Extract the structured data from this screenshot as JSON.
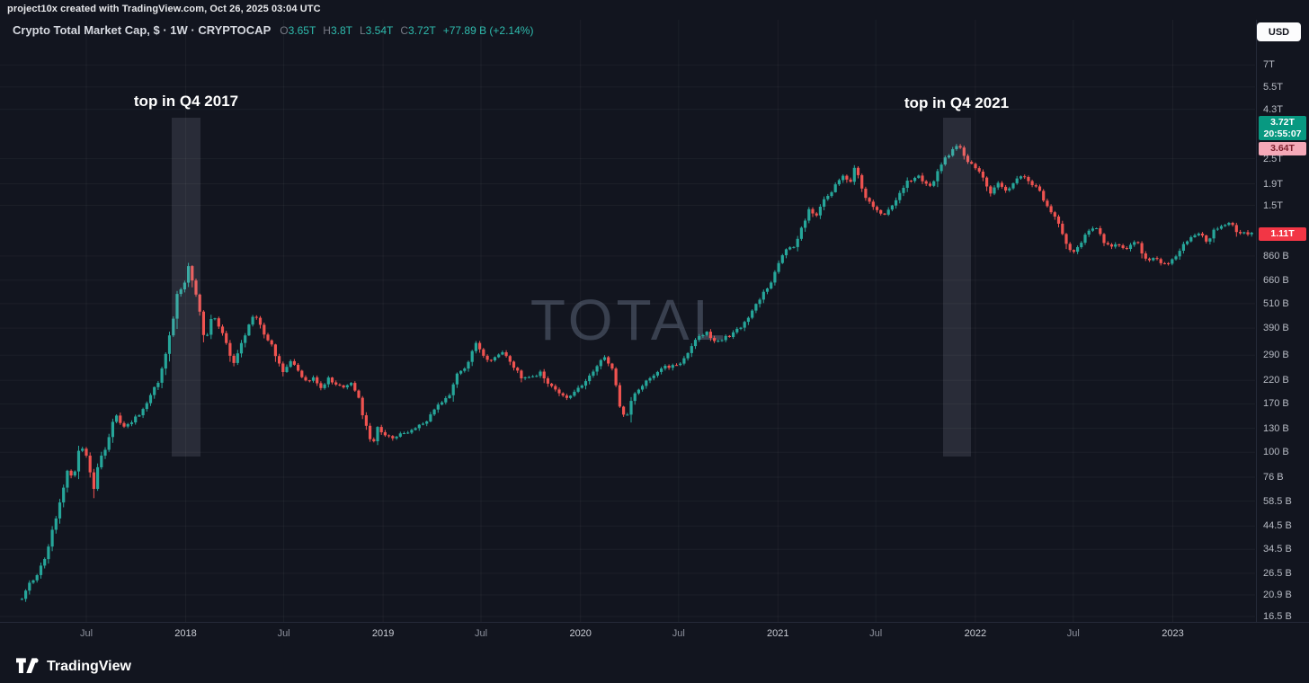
{
  "top_bar": {
    "attribution": "project10x created with TradingView.com, Oct 26, 2025 03:04 UTC"
  },
  "header": {
    "symbol_title": "Crypto Total Market Cap, $ · 1W · CRYPTOCAP",
    "ohlc": {
      "o_label": "O",
      "o": "3.65T",
      "h_label": "H",
      "h": "3.8T",
      "l_label": "L",
      "l": "3.54T",
      "c_label": "C",
      "c": "3.72T",
      "change": "+77.89 B (+2.14%)"
    }
  },
  "toolbar": {
    "currency_label": "USD"
  },
  "watermark": {
    "text": "TOTAL"
  },
  "logo": {
    "text": "TradingView"
  },
  "chart_data": {
    "type": "candlestick",
    "title": "Crypto Total Market Cap",
    "symbol": "CRYPTOCAP:TOTAL",
    "timeframe": "1W",
    "currency": "USD",
    "scale": "log",
    "grid": true,
    "colors": {
      "up": "#26a69a",
      "down": "#ef5350",
      "countdown_badge": "#089981",
      "alert_badge_bg": "#f5a9b8",
      "alert_badge_fg": "#7e1f2d",
      "last_badge": "#f23645",
      "background": "#12151f"
    },
    "last_bar": {
      "open": "3.65T",
      "high": "3.8T",
      "low": "3.54T",
      "close": "3.72T",
      "change": "+77.89 B",
      "change_pct": "+2.14%",
      "countdown": "20:55:07"
    },
    "last_visible_value_billions": 1110,
    "y_ticks": [
      {
        "label": "7T",
        "value": 7000
      },
      {
        "label": "5.5T",
        "value": 5500
      },
      {
        "label": "4.3T",
        "value": 4300
      },
      {
        "label": "2.5T",
        "value": 2500
      },
      {
        "label": "1.9T",
        "value": 1900
      },
      {
        "label": "1.5T",
        "value": 1500
      },
      {
        "label": "860 B",
        "value": 860
      },
      {
        "label": "660 B",
        "value": 660
      },
      {
        "label": "510 B",
        "value": 510
      },
      {
        "label": "390 B",
        "value": 390
      },
      {
        "label": "290 B",
        "value": 290
      },
      {
        "label": "220 B",
        "value": 220
      },
      {
        "label": "170 B",
        "value": 170
      },
      {
        "label": "130 B",
        "value": 130
      },
      {
        "label": "100 B",
        "value": 100
      },
      {
        "label": "76 B",
        "value": 76
      },
      {
        "label": "58.5 B",
        "value": 58.5
      },
      {
        "label": "44.5 B",
        "value": 44.5
      },
      {
        "label": "34.5 B",
        "value": 34.5
      },
      {
        "label": "26.5 B",
        "value": 26.5
      },
      {
        "label": "20.9 B",
        "value": 20.9
      },
      {
        "label": "16.5 B",
        "value": 16.5
      }
    ],
    "x_ticks": [
      {
        "text": "Jul",
        "t": 2017.497,
        "major": false
      },
      {
        "text": "2018",
        "t": 2018.0,
        "major": true
      },
      {
        "text": "Jul",
        "t": 2018.497,
        "major": false
      },
      {
        "text": "2019",
        "t": 2019.0,
        "major": true
      },
      {
        "text": "Jul",
        "t": 2019.496,
        "major": false
      },
      {
        "text": "2020",
        "t": 2020.0,
        "major": true
      },
      {
        "text": "Jul",
        "t": 2020.497,
        "major": false
      },
      {
        "text": "2021",
        "t": 2021.0,
        "major": true
      },
      {
        "text": "Jul",
        "t": 2021.496,
        "major": false
      },
      {
        "text": "2022",
        "t": 2022.0,
        "major": true
      },
      {
        "text": "Jul",
        "t": 2022.496,
        "major": false
      },
      {
        "text": "2023",
        "t": 2023.0,
        "major": true
      }
    ],
    "highlight_bands": [
      {
        "label": "top in Q4 2017",
        "t0": 2017.93,
        "t1": 2018.075
      },
      {
        "label": "top in Q4 2021",
        "t0": 2021.835,
        "t1": 2021.975
      }
    ],
    "price_badges": [
      {
        "label": "3.72T",
        "sub": "20:55:07",
        "bg": "#089981",
        "fg": "#ffffff",
        "y_top": 107,
        "two_line": true
      },
      {
        "label": "3.64T",
        "sub": null,
        "bg": "#f5a9b8",
        "fg": "#7e1f2d",
        "y_top": 136,
        "two_line": false
      },
      {
        "label": "1.11T",
        "sub": null,
        "bg": "#f23645",
        "fg": "#ffffff",
        "y_top": 231,
        "two_line": false
      }
    ],
    "anchors": [
      [
        2017.171,
        20
      ],
      [
        2017.21,
        24
      ],
      [
        2017.25,
        26
      ],
      [
        2017.29,
        32
      ],
      [
        2017.33,
        44
      ],
      [
        2017.37,
        62
      ],
      [
        2017.4,
        82
      ],
      [
        2017.43,
        74
      ],
      [
        2017.465,
        110
      ],
      [
        2017.5,
        95
      ],
      [
        2017.535,
        68
      ],
      [
        2017.56,
        90
      ],
      [
        2017.6,
        108
      ],
      [
        2017.645,
        155
      ],
      [
        2017.68,
        128
      ],
      [
        2017.72,
        140
      ],
      [
        2017.76,
        148
      ],
      [
        2017.8,
        170
      ],
      [
        2017.835,
        198
      ],
      [
        2017.87,
        225
      ],
      [
        2017.9,
        300
      ],
      [
        2017.935,
        420
      ],
      [
        2017.96,
        590
      ],
      [
        2017.985,
        600
      ],
      [
        2018.015,
        760
      ],
      [
        2018.04,
        640
      ],
      [
        2018.07,
        470
      ],
      [
        2018.1,
        330
      ],
      [
        2018.135,
        460
      ],
      [
        2018.17,
        400
      ],
      [
        2018.21,
        320
      ],
      [
        2018.245,
        260
      ],
      [
        2018.28,
        330
      ],
      [
        2018.32,
        400
      ],
      [
        2018.35,
        450
      ],
      [
        2018.39,
        380
      ],
      [
        2018.43,
        330
      ],
      [
        2018.47,
        270
      ],
      [
        2018.5,
        240
      ],
      [
        2018.535,
        280
      ],
      [
        2018.57,
        250
      ],
      [
        2018.61,
        215
      ],
      [
        2018.645,
        230
      ],
      [
        2018.68,
        200
      ],
      [
        2018.72,
        225
      ],
      [
        2018.76,
        210
      ],
      [
        2018.8,
        208
      ],
      [
        2018.845,
        210
      ],
      [
        2018.875,
        183
      ],
      [
        2018.91,
        135
      ],
      [
        2018.945,
        108
      ],
      [
        2018.975,
        132
      ],
      [
        2019.01,
        122
      ],
      [
        2019.06,
        118
      ],
      [
        2019.12,
        124
      ],
      [
        2019.18,
        134
      ],
      [
        2019.23,
        145
      ],
      [
        2019.28,
        172
      ],
      [
        2019.33,
        182
      ],
      [
        2019.38,
        245
      ],
      [
        2019.42,
        250
      ],
      [
        2019.465,
        335
      ],
      [
        2019.5,
        295
      ],
      [
        2019.54,
        265
      ],
      [
        2019.58,
        292
      ],
      [
        2019.62,
        298
      ],
      [
        2019.665,
        250
      ],
      [
        2019.71,
        222
      ],
      [
        2019.755,
        224
      ],
      [
        2019.8,
        242
      ],
      [
        2019.845,
        205
      ],
      [
        2019.89,
        196
      ],
      [
        2019.93,
        183
      ],
      [
        2019.97,
        192
      ],
      [
        2020.02,
        218
      ],
      [
        2020.07,
        250
      ],
      [
        2020.115,
        287
      ],
      [
        2020.16,
        256
      ],
      [
        2020.2,
        165
      ],
      [
        2020.225,
        142
      ],
      [
        2020.26,
        178
      ],
      [
        2020.3,
        205
      ],
      [
        2020.35,
        228
      ],
      [
        2020.4,
        248
      ],
      [
        2020.45,
        256
      ],
      [
        2020.5,
        262
      ],
      [
        2020.545,
        292
      ],
      [
        2020.59,
        348
      ],
      [
        2020.635,
        372
      ],
      [
        2020.675,
        332
      ],
      [
        2020.72,
        348
      ],
      [
        2020.765,
        362
      ],
      [
        2020.81,
        392
      ],
      [
        2020.85,
        440
      ],
      [
        2020.89,
        510
      ],
      [
        2020.93,
        575
      ],
      [
        2020.965,
        645
      ],
      [
        2021.0,
        770
      ],
      [
        2021.03,
        900
      ],
      [
        2021.055,
        980
      ],
      [
        2021.08,
        930
      ],
      [
        2021.12,
        1160
      ],
      [
        2021.155,
        1440
      ],
      [
        2021.19,
        1320
      ],
      [
        2021.23,
        1560
      ],
      [
        2021.27,
        1750
      ],
      [
        2021.305,
        1950
      ],
      [
        2021.33,
        2120
      ],
      [
        2021.36,
        1880
      ],
      [
        2021.395,
        2320
      ],
      [
        2021.43,
        1750
      ],
      [
        2021.465,
        1520
      ],
      [
        2021.5,
        1420
      ],
      [
        2021.54,
        1340
      ],
      [
        2021.575,
        1500
      ],
      [
        2021.615,
        1720
      ],
      [
        2021.655,
        1930
      ],
      [
        2021.7,
        2080
      ],
      [
        2021.74,
        1950
      ],
      [
        2021.78,
        1880
      ],
      [
        2021.82,
        2250
      ],
      [
        2021.85,
        2520
      ],
      [
        2021.885,
        2720
      ],
      [
        2021.915,
        2880
      ],
      [
        2021.945,
        2620
      ],
      [
        2021.975,
        2350
      ],
      [
        2022.005,
        2280
      ],
      [
        2022.04,
        2020
      ],
      [
        2022.075,
        1720
      ],
      [
        2022.115,
        1920
      ],
      [
        2022.155,
        1790
      ],
      [
        2022.2,
        1930
      ],
      [
        2022.245,
        2090
      ],
      [
        2022.29,
        1890
      ],
      [
        2022.335,
        1680
      ],
      [
        2022.37,
        1430
      ],
      [
        2022.41,
        1310
      ],
      [
        2022.45,
        1020
      ],
      [
        2022.485,
        890
      ],
      [
        2022.53,
        985
      ],
      [
        2022.57,
        1110
      ],
      [
        2022.61,
        1160
      ],
      [
        2022.65,
        1010
      ],
      [
        2022.695,
        965
      ],
      [
        2022.74,
        940
      ],
      [
        2022.78,
        955
      ],
      [
        2022.82,
        1000
      ],
      [
        2022.86,
        835
      ],
      [
        2022.9,
        832
      ],
      [
        2022.94,
        812
      ],
      [
        2022.98,
        798
      ],
      [
        2023.02,
        855
      ],
      [
        2023.06,
        1005
      ],
      [
        2023.1,
        1055
      ],
      [
        2023.14,
        1105
      ],
      [
        2023.175,
        1010
      ],
      [
        2023.21,
        1150
      ],
      [
        2023.25,
        1185
      ],
      [
        2023.29,
        1235
      ],
      [
        2023.33,
        1125
      ],
      [
        2023.37,
        1085
      ],
      [
        2023.405,
        1112
      ]
    ]
  }
}
